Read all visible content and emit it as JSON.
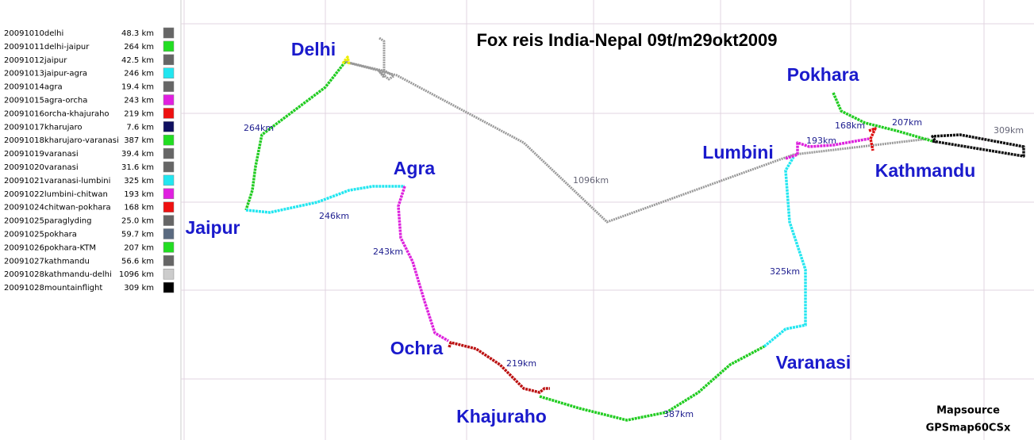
{
  "title": "Fox reis India-Nepal 09t/m29okt2009",
  "tracks": [
    {
      "name": "20091010delhi",
      "distance": "48.3 km",
      "color": "#666666"
    },
    {
      "name": "20091011delhi-jaipur",
      "distance": "264 km",
      "color": "#22dd22"
    },
    {
      "name": "20091012jaipur",
      "distance": "42.5 km",
      "color": "#666666"
    },
    {
      "name": "20091013jaipur-agra",
      "distance": "246 km",
      "color": "#22e6f0"
    },
    {
      "name": "20091014agra",
      "distance": "19.4 km",
      "color": "#666666"
    },
    {
      "name": "20091015agra-orcha",
      "distance": "243 km",
      "color": "#e020e0"
    },
    {
      "name": "20091016orcha-khajuraho",
      "distance": "219 km",
      "color": "#ee1111"
    },
    {
      "name": "20091017kharujaro",
      "distance": "7.6 km",
      "color": "#101060"
    },
    {
      "name": "20091018kharujaro-varanasi",
      "distance": "387 km",
      "color": "#22dd22"
    },
    {
      "name": "20091019varanasi",
      "distance": "39.4 km",
      "color": "#666666"
    },
    {
      "name": "20091020varanasi",
      "distance": "31.6 km",
      "color": "#666666"
    },
    {
      "name": "20091021varanasi-lumbini",
      "distance": "325 km",
      "color": "#22e6f0"
    },
    {
      "name": "20091022lumbini-chitwan",
      "distance": "193 km",
      "color": "#e020e0"
    },
    {
      "name": "20091024chitwan-pokhara",
      "distance": "168 km",
      "color": "#ee1111"
    },
    {
      "name": "20091025paraglyding",
      "distance": "25.0 km",
      "color": "#666666"
    },
    {
      "name": "20091025pokhara",
      "distance": "59.7 km",
      "color": "#5a6a80"
    },
    {
      "name": "20091026pokhara-KTM",
      "distance": "207 km",
      "color": "#22dd22"
    },
    {
      "name": "20091027kathmandu",
      "distance": "56.6 km",
      "color": "#666666"
    },
    {
      "name": "20091028kathmandu-delhi",
      "distance": "1096 km",
      "color": "#cccccc"
    },
    {
      "name": "20091028mountainflight",
      "distance": "309 km",
      "color": "#000000"
    }
  ],
  "cities": [
    "Delhi",
    "Jaipur",
    "Agra",
    "Ochra",
    "Khajuraho",
    "Varanasi",
    "Lumbini",
    "Pokhara",
    "Kathmandu"
  ],
  "route_labels": [
    "264km",
    "246km",
    "243km",
    "219km",
    "387km",
    "325km",
    "193km",
    "168km",
    "207km",
    "309km",
    "1096km"
  ],
  "footer": [
    "Mapsource",
    "GPSmap60CSx"
  ]
}
